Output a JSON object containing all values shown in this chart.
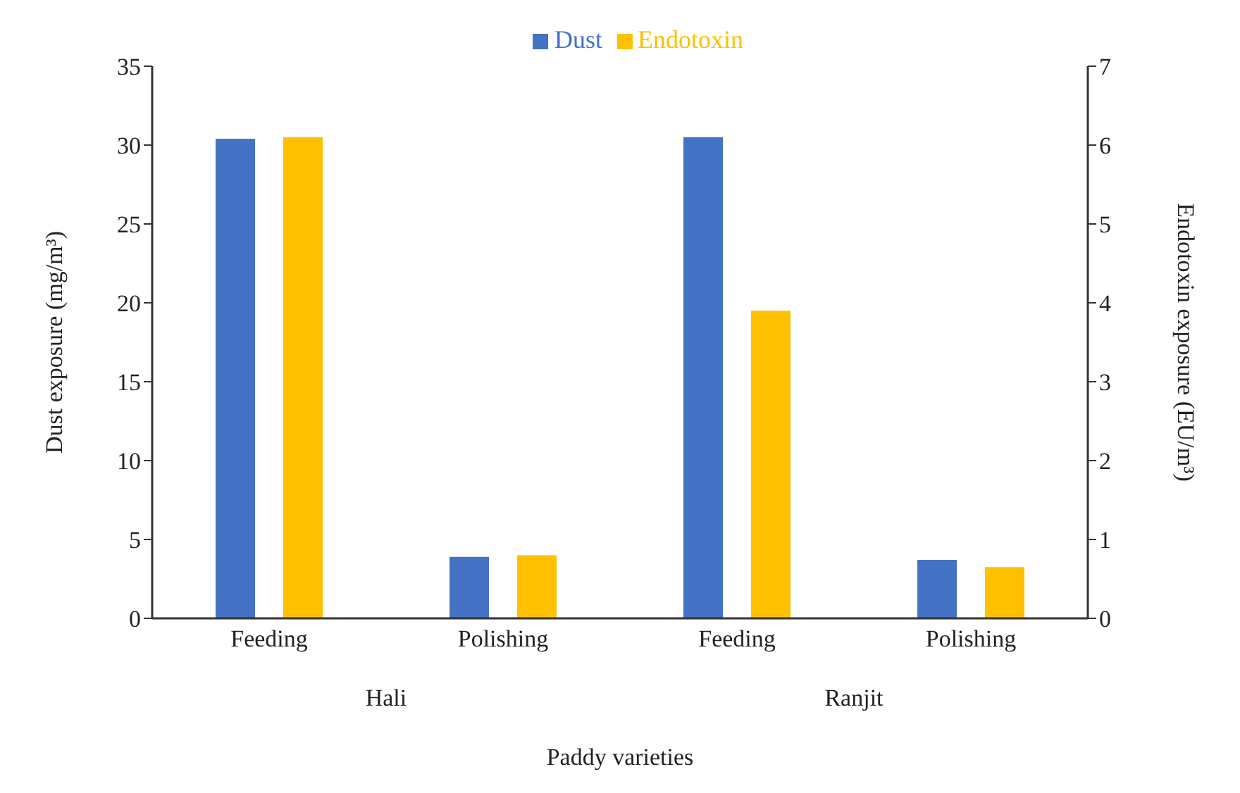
{
  "chart_data": {
    "type": "bar",
    "xlabel": "Paddy varieties",
    "ylabel": "Dust exposure (mg/m³)",
    "y2label": "Endotoxin exposure (EU/m³)",
    "categories": [
      "Feeding",
      "Polishing",
      "Feeding",
      "Polishing"
    ],
    "annotations": [
      "Hali",
      "Ranjit"
    ],
    "series": [
      {
        "name": "Dust",
        "color": "#4472c4",
        "values": [
          30.4,
          3.9,
          30.5,
          3.7
        ]
      },
      {
        "name": "Endotoxin",
        "color": "#ffc000",
        "axis": "y2",
        "values": [
          6.1,
          0.8,
          3.9,
          0.65
        ]
      }
    ],
    "ylim": [
      0,
      35
    ],
    "yticks": [
      0,
      5,
      10,
      15,
      20,
      25,
      30,
      35
    ],
    "y2lim": [
      0,
      7
    ],
    "y2ticks": [
      0,
      1,
      2,
      3,
      4,
      5,
      6,
      7
    ],
    "legend": "top",
    "grid": false
  }
}
